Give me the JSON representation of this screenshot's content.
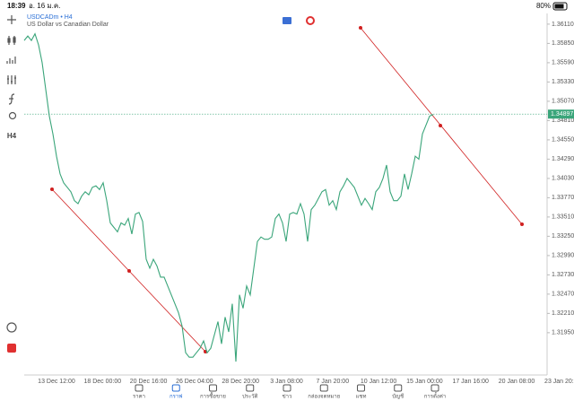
{
  "status_bar": {
    "time": "18:39",
    "date": "อ. 16 ม.ค.",
    "battery": "80%"
  },
  "toolbar": {
    "timeframe": "H4"
  },
  "chart": {
    "symbol": "USDCADm • H4",
    "description": "US Dollar vs Canadian Dollar",
    "type": "line",
    "color": "#3aa57a",
    "values": [
      1.3589,
      1.3595,
      1.3589,
      1.3598,
      1.3583,
      1.3559,
      1.3523,
      1.3487,
      1.3463,
      1.3433,
      1.3409,
      1.3397,
      1.3391,
      1.3385,
      1.3373,
      1.3369,
      1.3379,
      1.3385,
      1.3381,
      1.3391,
      1.3393,
      1.3388,
      1.3397,
      1.3373,
      1.3343,
      1.3337,
      1.3331,
      1.3343,
      1.334,
      1.3349,
      1.3328,
      1.3355,
      1.3357,
      1.3345,
      1.3294,
      1.3282,
      1.3294,
      1.3285,
      1.327,
      1.327,
      1.3258,
      1.3246,
      1.3234,
      1.3222,
      1.3204,
      1.3168,
      1.3162,
      1.3162,
      1.3168,
      1.3174,
      1.3184,
      1.3168,
      1.3174,
      1.3192,
      1.321,
      1.318,
      1.3216,
      1.3196,
      1.3234,
      1.3156,
      1.3246,
      1.3228,
      1.3258,
      1.3246,
      1.3282,
      1.3318,
      1.3324,
      1.3321,
      1.3321,
      1.3324,
      1.3349,
      1.3355,
      1.3343,
      1.3318,
      1.3355,
      1.3357,
      1.3355,
      1.3369,
      1.3355,
      1.3318,
      1.3361,
      1.3367,
      1.3376,
      1.3385,
      1.3388,
      1.3367,
      1.3373,
      1.3361,
      1.3385,
      1.3393,
      1.3403,
      1.3397,
      1.3391,
      1.3379,
      1.3367,
      1.3376,
      1.3369,
      1.3361,
      1.3385,
      1.3391,
      1.3403,
      1.3421,
      1.3385,
      1.3373,
      1.3373,
      1.3379,
      1.3409,
      1.3388,
      1.3409,
      1.3433,
      1.3429,
      1.3463,
      1.3475,
      1.3487,
      1.3489
    ],
    "ylim": [
      1.3138,
      1.36254
    ],
    "yticks": [
      {
        "value": 1.3611,
        "label": "1.36110"
      },
      {
        "value": 1.3585,
        "label": "1.35850"
      },
      {
        "value": 1.3559,
        "label": "1.35590"
      },
      {
        "value": 1.3533,
        "label": "1.35330"
      },
      {
        "value": 1.3507,
        "label": "1.35070"
      },
      {
        "value": 1.3481,
        "label": "1.34810"
      },
      {
        "value": 1.3455,
        "label": "1.34550"
      },
      {
        "value": 1.3429,
        "label": "1.34290"
      },
      {
        "value": 1.3403,
        "label": "1.34030"
      },
      {
        "value": 1.3377,
        "label": "1.33770"
      },
      {
        "value": 1.3351,
        "label": "1.33510"
      },
      {
        "value": 1.3325,
        "label": "1.33250"
      },
      {
        "value": 1.3299,
        "label": "1.32990"
      },
      {
        "value": 1.3273,
        "label": "1.32730"
      },
      {
        "value": 1.3247,
        "label": "1.32470"
      },
      {
        "value": 1.3221,
        "label": "1.32210"
      },
      {
        "value": 1.3195,
        "label": "1.31950"
      }
    ],
    "current_price": {
      "value": 1.34897,
      "label": "1.34897"
    },
    "x_labels": [
      "13 Dec 12:00",
      "18 Dec 00:00",
      "20 Dec 16:00",
      "26 Dec 04:00",
      "28 Dec 20:00",
      "3 Jan 08:00",
      "7 Jan 20:00",
      "10 Jan 12:00",
      "15 Jan 00:00",
      "17 Jan 16:00",
      "20 Jan 08:00",
      "23 Jan 20:00"
    ]
  },
  "nav": {
    "items": [
      "ราคา",
      "กราฟ",
      "การซื้อขาย",
      "ประวัติ",
      "ข่าว",
      "กล่องจดหมาย",
      "แชท",
      "บัญชี",
      "การตั้งค่า"
    ],
    "active": 1
  }
}
